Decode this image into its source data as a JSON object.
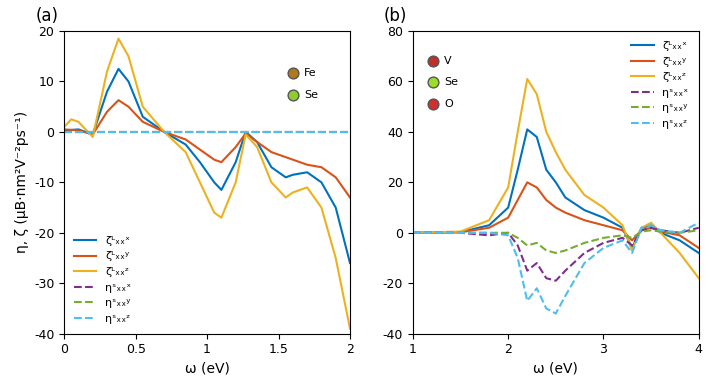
{
  "chart_data": [
    {
      "type": "line",
      "title": "(a)",
      "x_label": "ω (eV)",
      "y_label": "η, ζ (μB·nm²V⁻²ps⁻¹)",
      "x": [
        0,
        0.05,
        0.1,
        0.2,
        0.3,
        0.38,
        0.45,
        0.55,
        0.7,
        0.85,
        0.95,
        1.05,
        1.1,
        1.2,
        1.27,
        1.35,
        1.45,
        1.55,
        1.6,
        1.7,
        1.8,
        1.9,
        2.0
      ],
      "xlim": [
        0,
        2
      ],
      "xticks": [
        0,
        0.5,
        1,
        1.5,
        2
      ],
      "ylim": [
        -40,
        20
      ],
      "yticks": [
        -40,
        -30,
        -20,
        -10,
        0,
        10,
        20
      ],
      "legend": "lower left",
      "series": [
        {
          "name": "ζᴸₓₓˣ",
          "color": "#0072BD",
          "line_style": "solid",
          "values": [
            0.3,
            0.4,
            0.5,
            -0.5,
            8,
            12.5,
            10,
            3,
            0,
            -2.5,
            -6,
            -10,
            -11.5,
            -6,
            0,
            -2,
            -7,
            -9,
            -8.5,
            -8,
            -10,
            -15,
            -26
          ]
        },
        {
          "name": "ζᴸₓₓʸ",
          "color": "#D95319",
          "line_style": "solid",
          "values": [
            0.5,
            0.4,
            0.3,
            -0.5,
            4,
            6.3,
            5,
            2,
            0,
            -1.5,
            -3.5,
            -5.5,
            -6,
            -3,
            -0.3,
            -2,
            -4,
            -5,
            -5.5,
            -6.5,
            -7,
            -9,
            -13
          ]
        },
        {
          "name": "ζᴸₓₓᶻ",
          "color": "#EDB120",
          "line_style": "solid",
          "values": [
            1,
            2.5,
            2,
            -1,
            12,
            18.5,
            15,
            5,
            0,
            -4,
            -10,
            -16,
            -17,
            -10,
            -0.5,
            -3,
            -10,
            -13,
            -12,
            -11,
            -15,
            -25,
            -39
          ]
        },
        {
          "name": "ηˢₓₓˣ",
          "color": "#7E2F8E",
          "line_style": "dashed",
          "values": [
            0,
            0,
            0,
            0,
            0,
            0,
            0,
            0,
            0,
            0,
            0,
            0,
            0,
            0,
            0,
            0,
            0,
            0,
            0,
            0,
            0,
            0,
            0
          ]
        },
        {
          "name": "ηˢₓₓʸ",
          "color": "#77AC30",
          "line_style": "dashed",
          "values": [
            0,
            0,
            0,
            0,
            0,
            0,
            0,
            0,
            0,
            0,
            0,
            0,
            0,
            0,
            0,
            0,
            0,
            0,
            0,
            0,
            0,
            0,
            0
          ]
        },
        {
          "name": "ηˢₓₓᶻ",
          "color": "#4DBEEE",
          "line_style": "dashed",
          "values": [
            0,
            0,
            0,
            0,
            0,
            0,
            0,
            0,
            0,
            0,
            0,
            0,
            0,
            0,
            0,
            0,
            0,
            0,
            0,
            0,
            0,
            0,
            0
          ]
        }
      ],
      "annotations": [
        {
          "text": "Fe",
          "color": "#b07820"
        },
        {
          "text": "Se",
          "color": "#8fcc30"
        }
      ]
    },
    {
      "type": "line",
      "title": "(b)",
      "x_label": "ω (eV)",
      "x": [
        1,
        1.5,
        1.8,
        2.0,
        2.1,
        2.2,
        2.3,
        2.4,
        2.5,
        2.6,
        2.8,
        3.0,
        3.2,
        3.3,
        3.4,
        3.5,
        3.6,
        3.8,
        4.0
      ],
      "xlim": [
        1,
        4
      ],
      "xticks": [
        1,
        2,
        3,
        4
      ],
      "ylim": [
        -40,
        80
      ],
      "yticks": [
        -40,
        -20,
        0,
        20,
        40,
        60,
        80
      ],
      "legend": "upper right",
      "series": [
        {
          "name": "ζᴸₓₓˣ",
          "color": "#0072BD",
          "line_style": "solid",
          "values": [
            0,
            0.3,
            3,
            10,
            25,
            41,
            38,
            25,
            20,
            14,
            9,
            6,
            2,
            -6,
            2,
            3,
            0,
            -3,
            -8
          ]
        },
        {
          "name": "ζᴸₓₓʸ",
          "color": "#D95319",
          "line_style": "solid",
          "values": [
            0,
            0.2,
            2,
            6,
            13,
            20,
            18,
            13,
            10,
            8,
            5,
            3,
            1,
            -3,
            1,
            2,
            0.5,
            -1,
            -6
          ]
        },
        {
          "name": "ζᴸₓₓᶻ",
          "color": "#EDB120",
          "line_style": "solid",
          "values": [
            0,
            0.5,
            5,
            18,
            40,
            61,
            55,
            40,
            32,
            25,
            15,
            10,
            3,
            -7,
            2,
            4,
            0,
            -8,
            -18
          ]
        },
        {
          "name": "ηˢₓₓˣ",
          "color": "#7E2F8E",
          "line_style": "dashed",
          "values": [
            0,
            0,
            -1,
            0,
            -5,
            -15,
            -12,
            -18,
            -19,
            -15,
            -8,
            -4,
            -2,
            -5,
            1,
            2,
            1,
            0,
            2
          ]
        },
        {
          "name": "ηˢₓₓʸ",
          "color": "#77AC30",
          "line_style": "dashed",
          "values": [
            0,
            0,
            0,
            0,
            -2,
            -5,
            -4,
            -7,
            -8,
            -7,
            -4,
            -2,
            -1,
            -2,
            0.5,
            1,
            0.5,
            0,
            1
          ]
        },
        {
          "name": "ηˢₓₓᶻ",
          "color": "#4DBEEE",
          "line_style": "dashed",
          "values": [
            0,
            0,
            0,
            -1,
            -10,
            -27,
            -22,
            -30,
            -32,
            -25,
            -12,
            -6,
            -3,
            -8,
            2,
            3,
            1,
            0,
            4
          ]
        }
      ],
      "annotations": [
        {
          "text": "V",
          "color": "#c0302a"
        },
        {
          "text": "Se",
          "color": "#9ade2a"
        },
        {
          "text": "O",
          "color": "#d03030"
        }
      ]
    }
  ]
}
